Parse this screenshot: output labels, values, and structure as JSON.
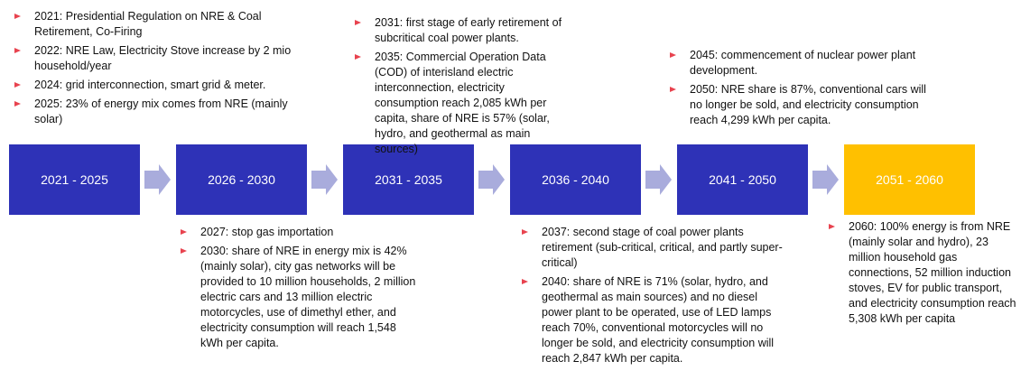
{
  "stages": [
    {
      "label": "2021 - 2025",
      "notes": [
        "2021: Presidential Regulation on NRE & Coal Retirement, Co-Firing",
        "2022: NRE Law, Electricity Stove increase by 2 mio household/year",
        "2024: grid interconnection, smart grid & meter.",
        "2025: 23% of energy mix comes from NRE (mainly solar)"
      ]
    },
    {
      "label": "2026 - 2030",
      "notes": [
        "2027: stop gas importation",
        "2030: share of NRE in energy mix is 42% (mainly solar), city gas networks will be provided to 10 million households, 2 million electric cars and 13 million electric motorcycles, use of dimethyl ether, and electricity consumption will reach 1,548 kWh per capita."
      ]
    },
    {
      "label": "2031 - 2035",
      "notes": [
        "2031: first stage of early retirement of subcritical coal power plants.",
        "2035: Commercial Operation Data (COD) of interisland electric interconnection, electricity consumption reach 2,085 kWh per capita, share of NRE is 57% (solar, hydro, and geothermal as main sources)"
      ]
    },
    {
      "label": "2036 - 2040",
      "notes": [
        "2037: second stage of coal power plants retirement (sub-critical, critical, and partly super-critical)",
        "2040: share of NRE is 71% (solar, hydro, and geothermal as main sources) and no diesel power plant to be operated, use of LED lamps reach 70%, conventional motorcycles will no longer be sold, and electricity consumption will reach 2,847 kWh per capita."
      ]
    },
    {
      "label": "2041 - 2050",
      "notes": [
        "2045: commencement of nuclear power plant development.",
        "2050:  NRE share is 87%, conventional cars will no longer be sold, and electricity consumption reach 4,299 kWh per capita."
      ]
    },
    {
      "label": "2051 - 2060",
      "notes": [
        "2060: 100% energy is from NRE (mainly solar and hydro), 23 million household gas connections, 52 million induction stoves, EV for public transport, and  electricity consumption reach 5,308 kWh per capita"
      ]
    }
  ]
}
